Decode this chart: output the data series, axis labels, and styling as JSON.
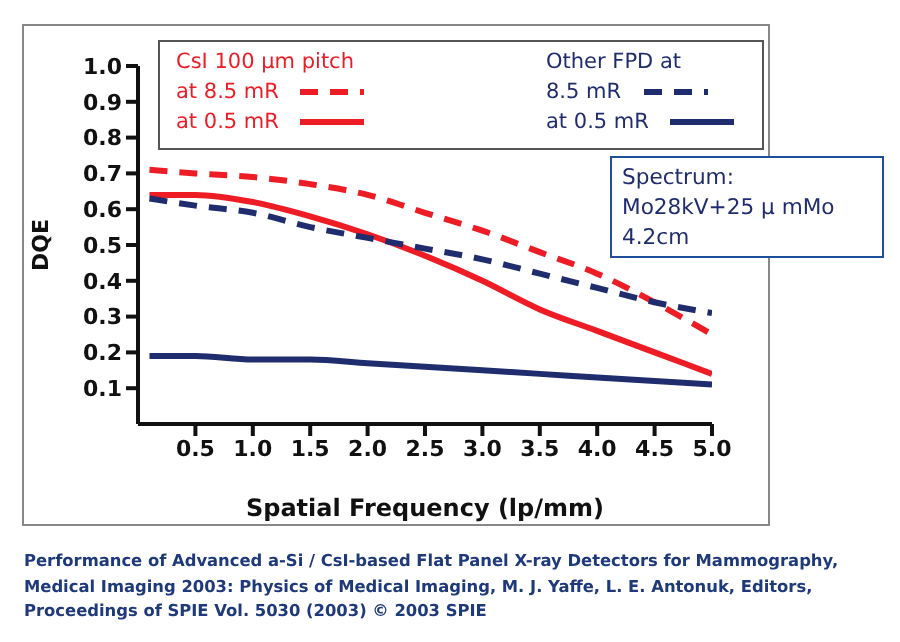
{
  "chart_data": {
    "type": "line",
    "xlabel": "Spatial Frequency (lp/mm)",
    "ylabel": "DQE",
    "x": [
      0.1,
      0.5,
      1.0,
      1.5,
      2.0,
      2.5,
      3.0,
      3.5,
      4.0,
      4.5,
      5.0
    ],
    "series": [
      {
        "name": "at 8.5 mR",
        "color": "#ee1c25",
        "line_style": "dashed",
        "values": [
          0.71,
          0.7,
          0.69,
          0.67,
          0.64,
          0.59,
          0.54,
          0.48,
          0.42,
          0.34,
          0.25
        ]
      },
      {
        "name": "at 0.5 mR",
        "color": "#ee1c25",
        "line_style": "solid",
        "values": [
          0.64,
          0.64,
          0.62,
          0.58,
          0.53,
          0.47,
          0.4,
          0.32,
          0.26,
          0.2,
          0.14
        ]
      },
      {
        "name": "8.5 mR",
        "color": "#1f2d6e",
        "line_style": "dashed",
        "values": [
          0.63,
          0.61,
          0.59,
          0.55,
          0.52,
          0.49,
          0.46,
          0.42,
          0.38,
          0.34,
          0.31
        ]
      },
      {
        "name": "at 0.5 mR",
        "color": "#1f2d6e",
        "line_style": "solid",
        "values": [
          0.19,
          0.19,
          0.18,
          0.18,
          0.17,
          0.16,
          0.15,
          0.14,
          0.13,
          0.12,
          0.11
        ]
      }
    ],
    "xlim": [
      0,
      5
    ],
    "xticks": [
      0.5,
      {
        "value": 1,
        "label": "1.0"
      },
      1.5,
      {
        "value": 2,
        "label": "2.0"
      },
      2.5,
      {
        "value": 3,
        "label": "3.0"
      },
      3.5,
      {
        "value": 4,
        "label": "4.0"
      },
      4.5,
      {
        "value": 5,
        "label": "5.0"
      }
    ],
    "ylim": [
      0,
      1
    ],
    "yticks": [
      0.1,
      0.2,
      0.3,
      0.4,
      0.5,
      0.6,
      0.7,
      0.8,
      0.9,
      {
        "value": 1,
        "label": "1.0"
      }
    ],
    "grid": false,
    "legend": "top",
    "marker": "none",
    "annotations": [
      "CsI  100 µm pitch",
      "Other FPD at",
      "Spectrum:\nMo28kV+25 μ mMo\n4.2cm",
      "Performance of Advanced a-Si / CsI-based Flat Panel X-ray Detectors for Mammography,\nMedical Imaging 2003: Physics of Medical Imaging, M. J. Yaffe, L. E. Antonuk, Editors,\nProceedings of SPIE Vol. 5030 (2003) © 2003 SPIE"
    ]
  }
}
